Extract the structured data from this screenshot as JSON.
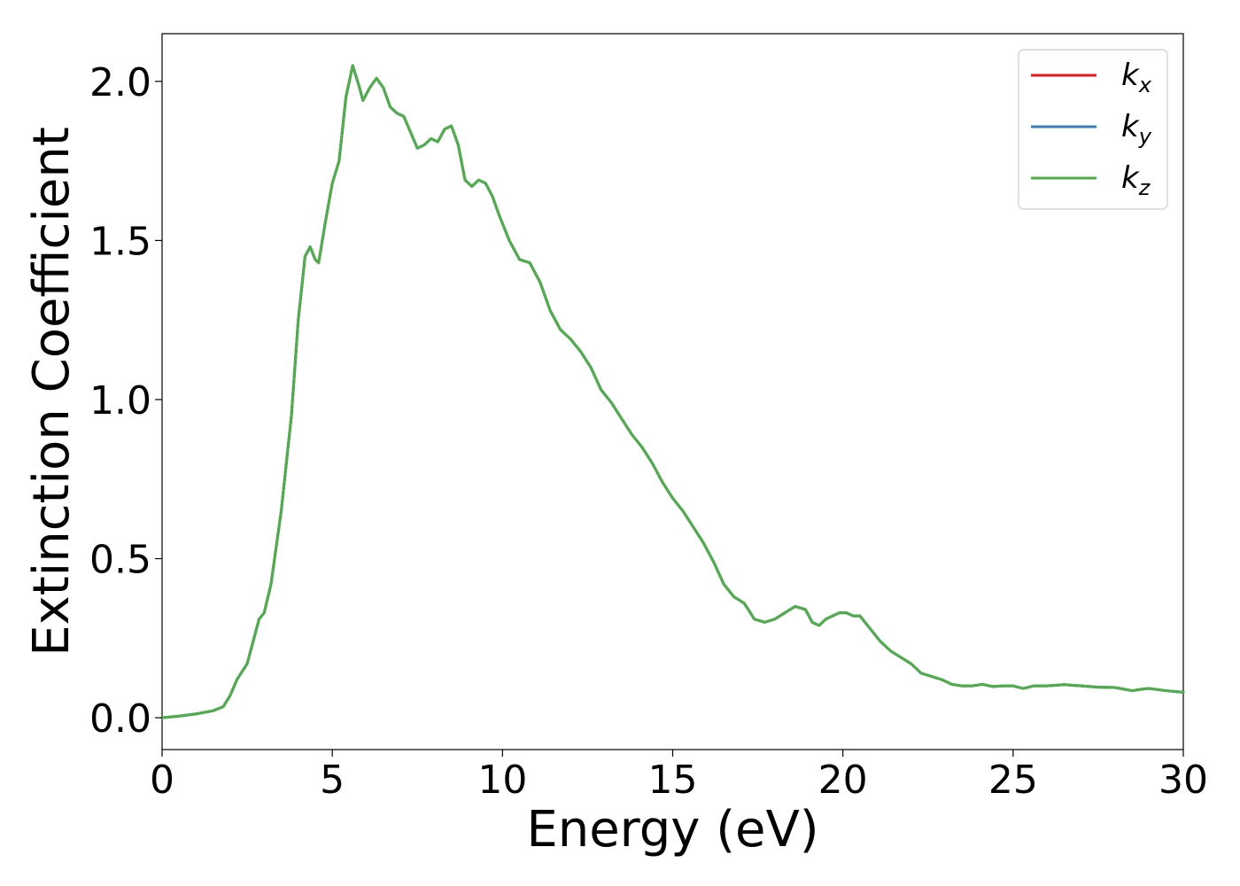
{
  "chart_data": {
    "type": "line",
    "xlabel": "Energy (eV)",
    "ylabel": "Extinction Coefficient",
    "xlim": [
      0,
      30
    ],
    "ylim": [
      -0.1,
      2.15
    ],
    "xticks": [
      0,
      5,
      10,
      15,
      20,
      25,
      30
    ],
    "xtick_labels": [
      "0",
      "5",
      "10",
      "15",
      "20",
      "25",
      "30"
    ],
    "yticks": [
      0.0,
      0.5,
      1.0,
      1.5,
      2.0
    ],
    "ytick_labels": [
      "0.0",
      "0.5",
      "1.0",
      "1.5",
      "2.0"
    ],
    "grid": false,
    "legend_position": "top-right",
    "x": [
      0,
      0.5,
      1,
      1.5,
      1.8,
      2,
      2.2,
      2.5,
      2.7,
      2.85,
      3,
      3.2,
      3.5,
      3.8,
      4,
      4.2,
      4.35,
      4.5,
      4.6,
      4.8,
      5,
      5.2,
      5.4,
      5.6,
      5.8,
      5.9,
      6.1,
      6.3,
      6.5,
      6.7,
      6.9,
      7.1,
      7.3,
      7.5,
      7.7,
      7.9,
      8.1,
      8.3,
      8.5,
      8.7,
      8.9,
      9.1,
      9.3,
      9.5,
      9.7,
      9.9,
      10.2,
      10.5,
      10.8,
      11.1,
      11.4,
      11.7,
      12,
      12.3,
      12.6,
      12.9,
      13.2,
      13.5,
      13.8,
      14.1,
      14.4,
      14.7,
      15,
      15.3,
      15.6,
      15.9,
      16.2,
      16.5,
      16.8,
      17.1,
      17.4,
      17.7,
      18,
      18.3,
      18.6,
      18.9,
      19.1,
      19.3,
      19.5,
      19.7,
      19.9,
      20.1,
      20.3,
      20.5,
      20.8,
      21.1,
      21.4,
      21.7,
      22,
      22.3,
      22.6,
      22.9,
      23.2,
      23.5,
      23.8,
      24.1,
      24.4,
      24.7,
      25,
      25.3,
      25.6,
      26,
      26.5,
      27,
      27.5,
      28,
      28.5,
      28.8,
      29,
      29.5,
      30
    ],
    "series": [
      {
        "name": "k_x",
        "color": "#e41a1c",
        "values": [
          0,
          0.005,
          0.012,
          0.022,
          0.035,
          0.07,
          0.12,
          0.17,
          0.25,
          0.31,
          0.33,
          0.42,
          0.65,
          0.95,
          1.25,
          1.45,
          1.48,
          1.44,
          1.43,
          1.56,
          1.68,
          1.75,
          1.95,
          2.05,
          1.98,
          1.94,
          1.98,
          2.01,
          1.98,
          1.92,
          1.9,
          1.89,
          1.84,
          1.79,
          1.8,
          1.82,
          1.81,
          1.85,
          1.86,
          1.8,
          1.69,
          1.67,
          1.69,
          1.68,
          1.64,
          1.58,
          1.5,
          1.44,
          1.43,
          1.37,
          1.28,
          1.22,
          1.19,
          1.15,
          1.1,
          1.03,
          0.99,
          0.94,
          0.89,
          0.85,
          0.8,
          0.74,
          0.69,
          0.65,
          0.6,
          0.55,
          0.49,
          0.42,
          0.38,
          0.36,
          0.31,
          0.3,
          0.31,
          0.33,
          0.35,
          0.34,
          0.3,
          0.29,
          0.31,
          0.32,
          0.33,
          0.33,
          0.32,
          0.32,
          0.28,
          0.24,
          0.21,
          0.19,
          0.17,
          0.14,
          0.13,
          0.12,
          0.105,
          0.1,
          0.1,
          0.105,
          0.098,
          0.1,
          0.1,
          0.092,
          0.1,
          0.1,
          0.104,
          0.1,
          0.096,
          0.095,
          0.085,
          0.09,
          0.092,
          0.085,
          0.08
        ]
      },
      {
        "name": "k_y",
        "color": "#377eb8",
        "values": [
          0,
          0.005,
          0.012,
          0.022,
          0.035,
          0.07,
          0.12,
          0.17,
          0.25,
          0.31,
          0.33,
          0.42,
          0.65,
          0.95,
          1.25,
          1.45,
          1.48,
          1.44,
          1.43,
          1.56,
          1.68,
          1.75,
          1.95,
          2.05,
          1.98,
          1.94,
          1.98,
          2.01,
          1.98,
          1.92,
          1.9,
          1.89,
          1.84,
          1.79,
          1.8,
          1.82,
          1.81,
          1.85,
          1.86,
          1.8,
          1.69,
          1.67,
          1.69,
          1.68,
          1.64,
          1.58,
          1.5,
          1.44,
          1.43,
          1.37,
          1.28,
          1.22,
          1.19,
          1.15,
          1.1,
          1.03,
          0.99,
          0.94,
          0.89,
          0.85,
          0.8,
          0.74,
          0.69,
          0.65,
          0.6,
          0.55,
          0.49,
          0.42,
          0.38,
          0.36,
          0.31,
          0.3,
          0.31,
          0.33,
          0.35,
          0.34,
          0.3,
          0.29,
          0.31,
          0.32,
          0.33,
          0.33,
          0.32,
          0.32,
          0.28,
          0.24,
          0.21,
          0.19,
          0.17,
          0.14,
          0.13,
          0.12,
          0.105,
          0.1,
          0.1,
          0.105,
          0.098,
          0.1,
          0.1,
          0.092,
          0.1,
          0.1,
          0.104,
          0.1,
          0.096,
          0.095,
          0.085,
          0.09,
          0.092,
          0.085,
          0.08
        ]
      },
      {
        "name": "k_z",
        "color": "#4daf4a",
        "values": [
          0,
          0.005,
          0.012,
          0.022,
          0.035,
          0.07,
          0.12,
          0.17,
          0.25,
          0.31,
          0.33,
          0.42,
          0.65,
          0.95,
          1.25,
          1.45,
          1.48,
          1.44,
          1.43,
          1.56,
          1.68,
          1.75,
          1.95,
          2.05,
          1.98,
          1.94,
          1.98,
          2.01,
          1.98,
          1.92,
          1.9,
          1.89,
          1.84,
          1.79,
          1.8,
          1.82,
          1.81,
          1.85,
          1.86,
          1.8,
          1.69,
          1.67,
          1.69,
          1.68,
          1.64,
          1.58,
          1.5,
          1.44,
          1.43,
          1.37,
          1.28,
          1.22,
          1.19,
          1.15,
          1.1,
          1.03,
          0.99,
          0.94,
          0.89,
          0.85,
          0.8,
          0.74,
          0.69,
          0.65,
          0.6,
          0.55,
          0.49,
          0.42,
          0.38,
          0.36,
          0.31,
          0.3,
          0.31,
          0.33,
          0.35,
          0.34,
          0.3,
          0.29,
          0.31,
          0.32,
          0.33,
          0.33,
          0.32,
          0.32,
          0.28,
          0.24,
          0.21,
          0.19,
          0.17,
          0.14,
          0.13,
          0.12,
          0.105,
          0.1,
          0.1,
          0.105,
          0.098,
          0.1,
          0.1,
          0.092,
          0.1,
          0.1,
          0.104,
          0.1,
          0.096,
          0.095,
          0.085,
          0.09,
          0.092,
          0.085,
          0.08
        ]
      }
    ],
    "legend": [
      {
        "base": "k",
        "sub": "x"
      },
      {
        "base": "k",
        "sub": "y"
      },
      {
        "base": "k",
        "sub": "z"
      }
    ]
  }
}
